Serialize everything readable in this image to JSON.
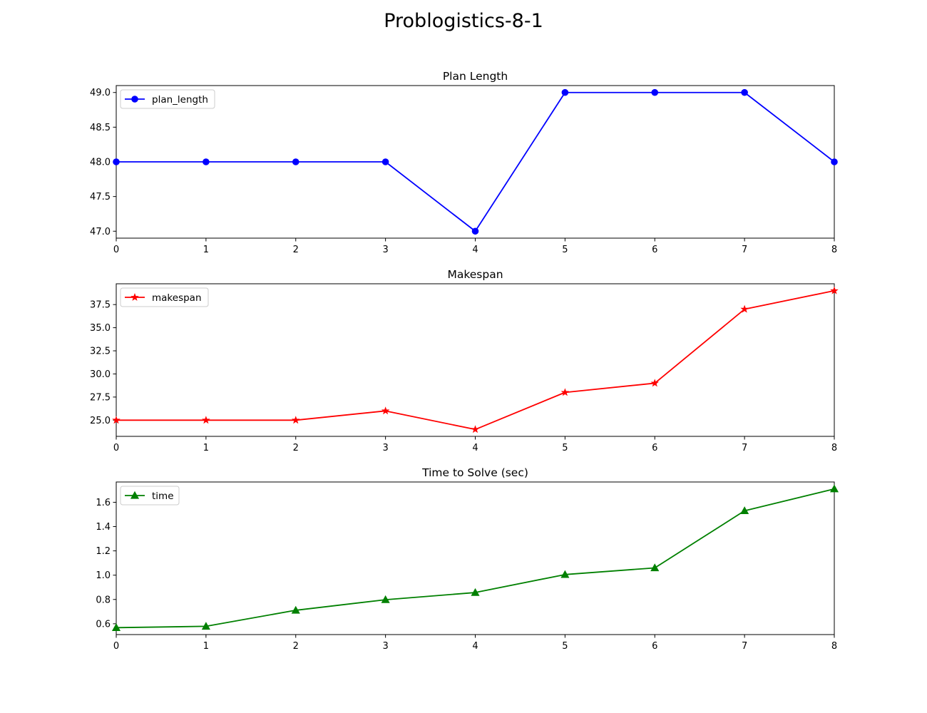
{
  "figure": {
    "suptitle": "Problogistics-8-1"
  },
  "chart_data": [
    {
      "type": "line",
      "title": "Plan Length",
      "xlabel": "",
      "ylabel": "",
      "x": [
        0,
        1,
        2,
        3,
        4,
        5,
        6,
        7,
        8
      ],
      "xlim": [
        0,
        8
      ],
      "ylim": [
        46.9,
        49.1
      ],
      "xticks": [
        "0",
        "1",
        "2",
        "3",
        "4",
        "5",
        "6",
        "7",
        "8"
      ],
      "yticks": [
        "47.0",
        "47.5",
        "48.0",
        "48.5",
        "49.0"
      ],
      "legend_position": "upper-left",
      "grid": false,
      "series": [
        {
          "name": "plan_length",
          "color": "#0000ff",
          "marker": "circle",
          "values": [
            48,
            48,
            48,
            48,
            47,
            49,
            49,
            49,
            48
          ]
        }
      ]
    },
    {
      "type": "line",
      "title": "Makespan",
      "xlabel": "",
      "ylabel": "",
      "x": [
        0,
        1,
        2,
        3,
        4,
        5,
        6,
        7,
        8
      ],
      "xlim": [
        0,
        8
      ],
      "ylim": [
        23.25,
        39.75
      ],
      "xticks": [
        "0",
        "1",
        "2",
        "3",
        "4",
        "5",
        "6",
        "7",
        "8"
      ],
      "yticks": [
        "25.0",
        "27.5",
        "30.0",
        "32.5",
        "35.0",
        "37.5"
      ],
      "legend_position": "upper-left",
      "grid": false,
      "series": [
        {
          "name": "makespan",
          "color": "#ff0000",
          "marker": "star",
          "values": [
            25,
            25,
            25,
            26,
            24,
            28,
            29,
            37,
            39
          ]
        }
      ]
    },
    {
      "type": "line",
      "title": "Time to Solve (sec)",
      "xlabel": "",
      "ylabel": "",
      "x": [
        0,
        1,
        2,
        3,
        4,
        5,
        6,
        7,
        8
      ],
      "xlim": [
        0,
        8
      ],
      "ylim": [
        0.511,
        1.767
      ],
      "xticks": [
        "0",
        "1",
        "2",
        "3",
        "4",
        "5",
        "6",
        "7",
        "8"
      ],
      "yticks": [
        "0.6",
        "0.8",
        "1.0",
        "1.2",
        "1.4",
        "1.6"
      ],
      "legend_position": "upper-left",
      "grid": false,
      "series": [
        {
          "name": "time",
          "color": "#008000",
          "marker": "triangle",
          "values": [
            0.568,
            0.579,
            0.711,
            0.798,
            0.857,
            1.005,
            1.06,
            1.53,
            1.71
          ]
        }
      ]
    }
  ]
}
